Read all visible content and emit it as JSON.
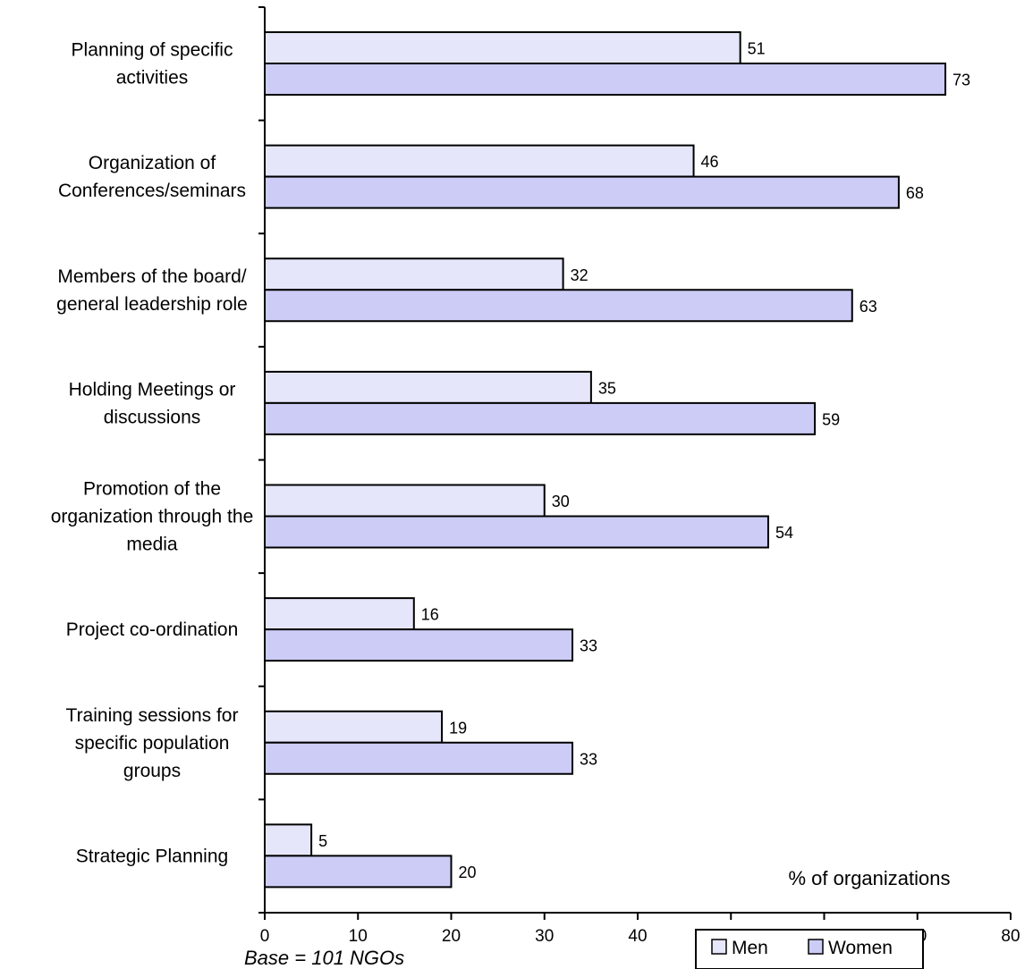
{
  "chart_data": {
    "type": "bar",
    "orientation": "horizontal",
    "categories": [
      [
        "Planning of specific",
        "activities"
      ],
      [
        "Organization of",
        "Conferences/seminars"
      ],
      [
        "Members of the board/",
        "general leadership role"
      ],
      [
        "Holding Meetings or",
        "discussions"
      ],
      [
        "Promotion of the",
        "organization through the",
        "media"
      ],
      [
        "Project co-ordination"
      ],
      [
        "Training sessions for",
        "specific population",
        "groups"
      ],
      [
        "Strategic Planning"
      ]
    ],
    "series": [
      {
        "name": "Men",
        "color": "#e6e6fa",
        "values": [
          51,
          46,
          32,
          35,
          30,
          16,
          19,
          5
        ]
      },
      {
        "name": "Women",
        "color": "#ccccf6",
        "values": [
          73,
          68,
          63,
          59,
          54,
          33,
          33,
          20
        ]
      }
    ],
    "xlim": [
      0,
      80
    ],
    "xticks": [
      0,
      10,
      20,
      30,
      40,
      50,
      60,
      70,
      80
    ],
    "grid": false,
    "legend_placement": "bottom-right",
    "unit_label": "% of organizations",
    "note": "Base = 101 NGOs"
  }
}
